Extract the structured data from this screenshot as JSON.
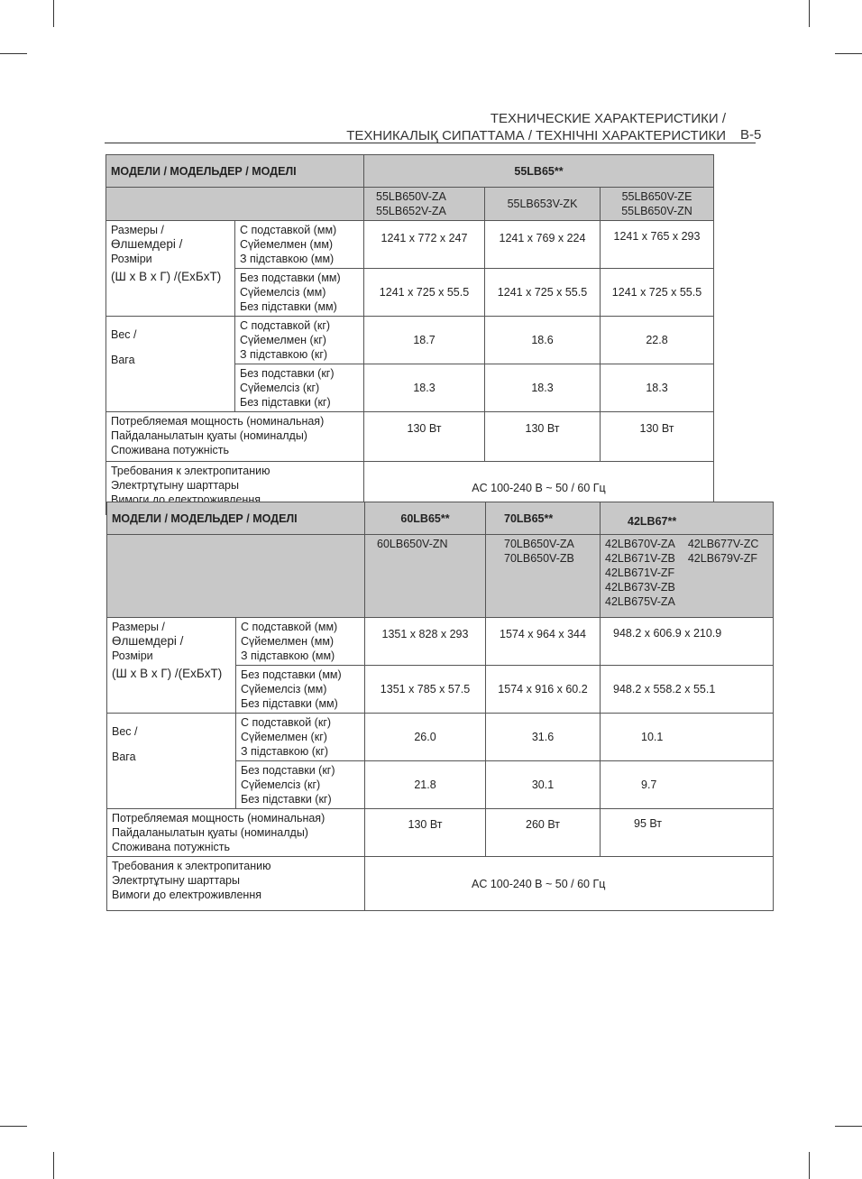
{
  "header": {
    "line1": "ТЕХНИЧЕСКИЕ ХАРАКТЕРИСТИКИ /",
    "line2": "ТЕХНИКАЛЫҚ СИПАТТАМА / ТЕХНІЧНІ ХАРАКТЕРИСТИКИ",
    "page": "B-5"
  },
  "labels": {
    "models": "МОДЕЛИ / МОДЕЛЬДЕР / МОДЕЛІ",
    "size": [
      "Размеры /",
      "Өлшемдері /",
      "Розміри"
    ],
    "size_unit": "(Ш x В x Г) /(ЕхБхТ)",
    "with_stand_mm": [
      "С подставкой (мм)",
      "Сүйемелмен (мм)",
      "З підставкою (мм)"
    ],
    "without_stand_mm": [
      "Без подставки (мм)",
      "Сүйемелсіз (мм)",
      "Без підставки (мм)"
    ],
    "weight": [
      "Вес /",
      "Вага"
    ],
    "with_stand_kg": [
      "С подставкой (кг)",
      "Сүйемелмен (кг)",
      "З підставкою (кг)"
    ],
    "without_stand_kg": [
      "Без подставки (кг)",
      "Сүйемелсіз (кг)",
      "Без підставки (кг)"
    ],
    "power": [
      "Потребляемая мощность (номинальная)",
      "Пайдаланылатын қуаты (номиналды)",
      "Споживана потужність"
    ],
    "supply": [
      "Требования к электропитанию",
      "Электртұтыну шарттары",
      "Вимоги до електроживлення"
    ]
  },
  "table1": {
    "series": "55LB65**",
    "models": [
      "55LB650V-ZA\n55LB652V-ZA",
      "55LB653V-ZK",
      "55LB650V-ZE\n55LB650V-ZN"
    ],
    "dim_with": [
      "1241 x 772 x 247",
      "1241 x 769 x 224",
      "1241 x 765 x 293"
    ],
    "dim_without": [
      "1241 x 725 x 55.5",
      "1241 x 725 x 55.5",
      "1241 x 725 x 55.5"
    ],
    "wt_with": [
      "18.7",
      "18.6",
      "22.8"
    ],
    "wt_without": [
      "18.3",
      "18.3",
      "18.3"
    ],
    "power": [
      "130 Вт",
      "130 Вт",
      "130 Вт"
    ],
    "supply": "AC 100-240 В ~ 50 / 60 Гц"
  },
  "table2": {
    "series": [
      "60LB65**",
      "70LB65**",
      "42LB67**"
    ],
    "models": [
      "60LB650V-ZN",
      "70LB650V-ZA\n70LB650V-ZB",
      "42LB670V-ZA\n42LB671V-ZB\n42LB671V-ZF\n42LB673V-ZB\n42LB675V-ZA",
      "42LB677V-ZC\n42LB679V-ZF"
    ],
    "dim_with": [
      "1351 x 828 x 293",
      "1574 x 964 x 344",
      "948.2 x 606.9 x 210.9"
    ],
    "dim_without": [
      "1351 x 785 x 57.5",
      "1574 x 916 x 60.2",
      "948.2 x 558.2 x 55.1"
    ],
    "wt_with": [
      "26.0",
      "31.6",
      "10.1"
    ],
    "wt_without": [
      "21.8",
      "30.1",
      "9.7"
    ],
    "power": [
      "130 Вт",
      "260 Вт",
      "95 Вт"
    ],
    "supply": "AC 100-240 В ~ 50 / 60 Гц"
  }
}
